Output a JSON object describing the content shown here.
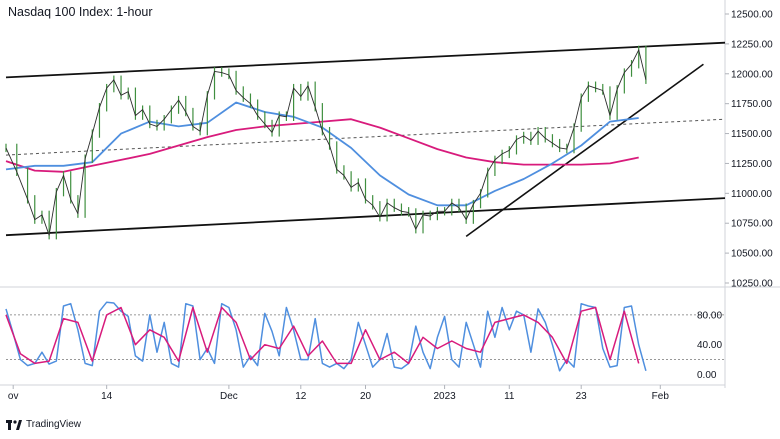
{
  "title": "Nasdaq 100 Index: 1-hour",
  "branding": "TradingView",
  "chart_data": [
    {
      "type": "line",
      "name": "price-panel",
      "ylim": [
        10250,
        12500
      ],
      "yticks": [
        12500,
        12250,
        12000,
        11750,
        11500,
        11250,
        11000,
        10750,
        10500,
        10250
      ],
      "xlim": [
        0,
        100
      ],
      "xticks": [
        {
          "label": "ov",
          "x": 1
        },
        {
          "label": "14",
          "x": 14
        },
        {
          "label": "Dec",
          "x": 31
        },
        {
          "label": "12",
          "x": 41
        },
        {
          "label": "20",
          "x": 50
        },
        {
          "label": "2023",
          "x": 61
        },
        {
          "label": "11",
          "x": 70
        },
        {
          "label": "23",
          "x": 80
        },
        {
          "label": "Feb",
          "x": 91
        }
      ],
      "price": {
        "x": [
          0,
          1.5,
          3,
          4,
          5,
          6,
          7,
          8,
          9,
          10,
          11,
          12,
          13,
          14,
          15,
          16,
          17,
          18,
          19,
          20,
          21,
          22,
          23,
          24,
          25,
          26,
          27,
          28,
          29,
          30,
          31,
          32,
          33,
          34,
          35,
          36,
          37,
          38,
          39,
          40,
          41,
          42,
          43,
          44,
          45,
          46,
          47,
          48,
          49,
          50,
          51,
          52,
          53,
          54,
          55,
          56,
          57,
          58,
          59,
          60,
          61,
          62,
          63,
          64,
          65,
          66,
          67,
          68,
          69,
          70,
          71,
          72,
          73,
          74,
          75,
          76,
          77,
          78,
          79,
          80,
          81,
          82,
          83,
          84,
          85,
          86,
          87,
          88,
          89
        ],
        "y": [
          11380,
          11180,
          10950,
          10780,
          10820,
          10650,
          11010,
          11150,
          10950,
          10830,
          11290,
          11500,
          11720,
          11880,
          11950,
          11820,
          11850,
          11650,
          11700,
          11580,
          11560,
          11620,
          11700,
          11780,
          11680,
          11560,
          11520,
          11820,
          12020,
          12010,
          11990,
          11860,
          11800,
          11750,
          11650,
          11580,
          11510,
          11650,
          11640,
          11880,
          11810,
          11900,
          11720,
          11520,
          11400,
          11200,
          11150,
          11050,
          11090,
          10950,
          10900,
          10800,
          10920,
          10880,
          10850,
          10840,
          10700,
          10820,
          10810,
          10850,
          10850,
          10920,
          10880,
          10780,
          10910,
          11000,
          11180,
          11280,
          11330,
          11360,
          11450,
          11480,
          11440,
          11520,
          11460,
          11420,
          11380,
          11370,
          11550,
          11800,
          11900,
          11880,
          11860,
          11650,
          11870,
          12010,
          12080,
          12200,
          11950
        ]
      },
      "ma_fast": {
        "x": [
          0,
          4,
          8,
          12,
          16,
          20,
          24,
          28,
          32,
          36,
          40,
          44,
          48,
          52,
          56,
          60,
          64,
          68,
          72,
          76,
          80,
          84,
          88
        ],
        "y": [
          11200,
          11230,
          11230,
          11260,
          11500,
          11600,
          11560,
          11590,
          11760,
          11680,
          11640,
          11550,
          11380,
          11150,
          10990,
          10900,
          10900,
          11020,
          11120,
          11250,
          11400,
          11600,
          11630
        ]
      },
      "ma_slow": {
        "x": [
          0,
          4,
          8,
          12,
          16,
          20,
          24,
          28,
          32,
          36,
          40,
          44,
          48,
          52,
          56,
          60,
          64,
          68,
          72,
          76,
          80,
          84,
          88
        ],
        "y": [
          11270,
          11190,
          11180,
          11230,
          11280,
          11330,
          11400,
          11470,
          11530,
          11560,
          11580,
          11600,
          11620,
          11550,
          11460,
          11370,
          11300,
          11260,
          11240,
          11240,
          11240,
          11250,
          11300
        ]
      },
      "channel_top": {
        "x": [
          0,
          100
        ],
        "y": [
          11970,
          12260
        ]
      },
      "channel_bottom": {
        "x": [
          0,
          100
        ],
        "y": [
          10650,
          10960
        ]
      },
      "channel_mid": {
        "x": [
          0,
          100
        ],
        "y": [
          11320,
          11620
        ]
      },
      "trendline_support": {
        "x": [
          64,
          97
        ],
        "y": [
          10640,
          12080
        ]
      },
      "colors": {
        "price": "#3f8f3f",
        "ma_fast": "#4f8fdf",
        "ma_slow": "#d81b7c",
        "channel": "#111111",
        "mid": "#555555"
      }
    },
    {
      "type": "line",
      "name": "stochastic-panel",
      "ylim": [
        -10,
        100
      ],
      "yticks": [
        80.0,
        40.0,
        0.0
      ],
      "ytick_labels": [
        "80.00",
        "40.00",
        "0.00"
      ],
      "levels": [
        80,
        20
      ],
      "k": {
        "x": [
          0,
          1,
          2,
          3,
          4,
          5,
          6,
          7,
          8,
          9,
          10,
          11,
          12,
          13,
          14,
          15,
          16,
          17,
          18,
          19,
          20,
          21,
          22,
          23,
          24,
          25,
          26,
          27,
          28,
          29,
          30,
          31,
          32,
          33,
          34,
          35,
          36,
          37,
          38,
          39,
          40,
          41,
          42,
          43,
          44,
          45,
          46,
          47,
          48,
          49,
          50,
          51,
          52,
          53,
          54,
          55,
          56,
          57,
          58,
          59,
          60,
          61,
          62,
          63,
          64,
          65,
          66,
          67,
          68,
          69,
          70,
          71,
          72,
          73,
          74,
          75,
          76,
          77,
          78,
          79,
          80,
          81,
          82,
          83,
          84,
          85,
          86,
          87,
          88,
          89
        ],
        "y": [
          88,
          55,
          20,
          12,
          15,
          30,
          14,
          18,
          92,
          95,
          60,
          15,
          12,
          85,
          97,
          96,
          85,
          78,
          25,
          18,
          80,
          30,
          70,
          15,
          10,
          95,
          92,
          20,
          35,
          15,
          95,
          90,
          60,
          10,
          25,
          12,
          82,
          58,
          25,
          90,
          60,
          20,
          20,
          75,
          15,
          10,
          15,
          8,
          20,
          70,
          40,
          10,
          20,
          55,
          10,
          8,
          15,
          65,
          30,
          8,
          50,
          78,
          20,
          10,
          70,
          40,
          10,
          85,
          50,
          90,
          60,
          85,
          80,
          30,
          88,
          70,
          40,
          5,
          20,
          10,
          95,
          92,
          90,
          35,
          10,
          12,
          90,
          92,
          40,
          5
        ]
      },
      "d": {
        "x": [
          0,
          2,
          4,
          6,
          8,
          10,
          12,
          14,
          16,
          18,
          20,
          22,
          24,
          26,
          28,
          30,
          32,
          34,
          36,
          38,
          40,
          42,
          44,
          46,
          48,
          50,
          52,
          54,
          56,
          58,
          60,
          62,
          64,
          66,
          68,
          70,
          72,
          74,
          76,
          78,
          80,
          82,
          84,
          86,
          88
        ],
        "y": [
          80,
          28,
          15,
          18,
          75,
          70,
          18,
          80,
          90,
          40,
          60,
          50,
          18,
          90,
          30,
          90,
          70,
          20,
          40,
          35,
          65,
          25,
          45,
          15,
          15,
          60,
          20,
          30,
          15,
          50,
          35,
          45,
          35,
          30,
          70,
          75,
          80,
          70,
          50,
          15,
          85,
          90,
          20,
          85,
          15
        ]
      },
      "colors": {
        "k": "#4f8fdf",
        "d": "#d81b7c"
      }
    }
  ]
}
